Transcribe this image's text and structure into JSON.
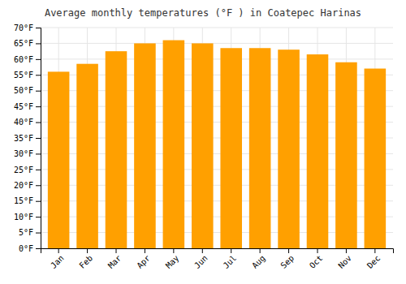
{
  "chart_data": {
    "type": "bar",
    "title": "Average monthly temperatures (°F ) in Coatepec Harinas",
    "categories": [
      "Jan",
      "Feb",
      "Mar",
      "Apr",
      "May",
      "Jun",
      "Jul",
      "Aug",
      "Sep",
      "Oct",
      "Nov",
      "Dec"
    ],
    "values": [
      56.0,
      58.5,
      62.5,
      65.0,
      66.0,
      65.0,
      63.5,
      63.5,
      63.0,
      61.5,
      59.0,
      57.0
    ],
    "color": "#FFA000",
    "ylim": [
      0,
      70
    ],
    "yticks": [
      {
        "value": 0,
        "label": "0°F"
      },
      {
        "value": 5,
        "label": "5°F"
      },
      {
        "value": 10,
        "label": "10°F"
      },
      {
        "value": 15,
        "label": "15°F"
      },
      {
        "value": 20,
        "label": "20°F"
      },
      {
        "value": 25,
        "label": "25°F"
      },
      {
        "value": 30,
        "label": "30°F"
      },
      {
        "value": 35,
        "label": "35°F"
      },
      {
        "value": 40,
        "label": "40°F"
      },
      {
        "value": 45,
        "label": "45°F"
      },
      {
        "value": 50,
        "label": "50°F"
      },
      {
        "value": 55,
        "label": "55°F"
      },
      {
        "value": 60,
        "label": "60°F"
      },
      {
        "value": 65,
        "label": "65°F"
      },
      {
        "value": 70,
        "label": "70°F"
      }
    ],
    "grid": true
  }
}
